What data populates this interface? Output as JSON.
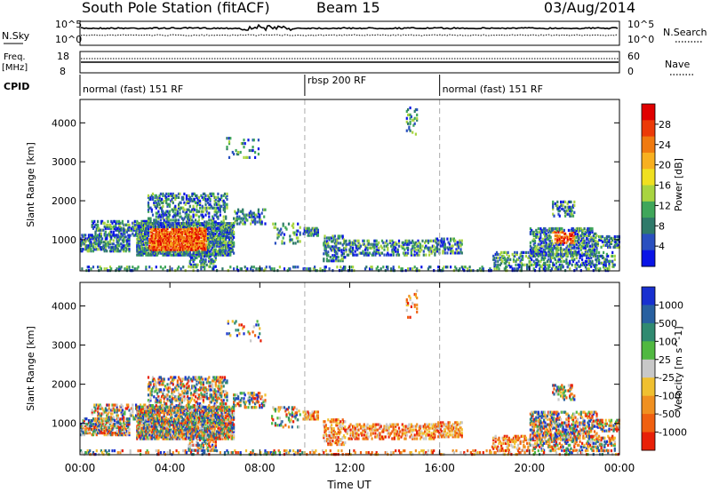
{
  "header": {
    "station": "South Pole Station (fitACF)",
    "beam": "Beam 15",
    "date": "03/Aug/2014"
  },
  "strips": {
    "nsky_label": "N.Sky",
    "nsky_ticks": [
      "10^5",
      "10^0"
    ],
    "nsearch_label": "N.Search",
    "nsearch_ticks": [
      "10^5",
      "10^0"
    ],
    "freq_label_1": "Freq.",
    "freq_label_2": "[MHz]",
    "freq_ticks": [
      "18",
      "8"
    ],
    "nave_label": "Nave",
    "nave_ticks": [
      "60",
      "0"
    ],
    "cpid_label": "CPID",
    "cpid_segments": [
      "normal (fast) 151 RF",
      "rbsp 200 RF",
      "normal (fast) 151 RF"
    ],
    "cpid_segment_start_hours": [
      0,
      10,
      16
    ]
  },
  "chart_data": [
    {
      "type": "heatmap",
      "panel": "power",
      "ylabel": "Slant Range [km]",
      "yticks": [
        "1000",
        "2000",
        "3000",
        "4000"
      ],
      "ylim": [
        200,
        4600
      ],
      "xlim_hours": [
        0,
        24
      ],
      "colorbar_label": "Power [dB]",
      "colorbar_ticks": [
        "4",
        "8",
        "12",
        "16",
        "20",
        "24",
        "28"
      ],
      "colorbar_colors": [
        "#0a14e6",
        "#2a50c0",
        "#2f7a6a",
        "#3fa65a",
        "#a8d440",
        "#f0e020",
        "#f8b020",
        "#f07a10",
        "#ec3a08",
        "#e00000"
      ],
      "dashed_hours": [
        10,
        16
      ]
    },
    {
      "type": "heatmap",
      "panel": "velocity",
      "ylabel": "Slant Range [km]",
      "yticks": [
        "1000",
        "2000",
        "3000",
        "4000"
      ],
      "ylim": [
        200,
        4600
      ],
      "xlim_hours": [
        0,
        24
      ],
      "colorbar_label": "Velocity [m s^-1]",
      "colorbar_ticks": [
        "1000",
        "500",
        "100",
        "25",
        "-25",
        "-100",
        "-500",
        "-1000"
      ],
      "colorbar_colors": [
        "#1830d0",
        "#2860a0",
        "#308a70",
        "#50b840",
        "#c8c8c8",
        "#f0c030",
        "#f09020",
        "#f06010",
        "#e82008"
      ],
      "dashed_hours": [
        10,
        16
      ]
    }
  ],
  "xaxis": {
    "ticks": [
      "00:00",
      "04:00",
      "08:00",
      "12:00",
      "16:00",
      "20:00",
      "00:00"
    ],
    "tick_hours": [
      0,
      4,
      8,
      12,
      16,
      20,
      24
    ],
    "label": "Time UT"
  }
}
